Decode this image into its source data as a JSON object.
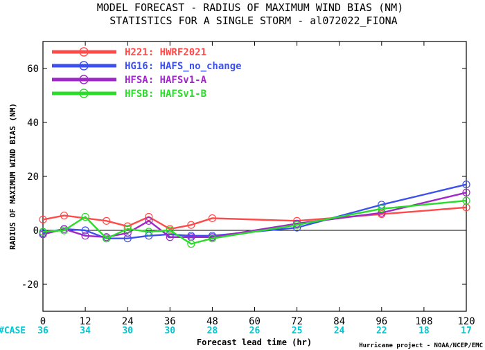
{
  "chart_data": {
    "type": "line",
    "title": "MODEL FORECAST - RADIUS OF MAXIMUM WIND BIAS (NM)",
    "subtitle": "STATISTICS FOR A SINGLE STORM - al072022_FIONA",
    "xlabel": "Forecast lead time (hr)",
    "ylabel": "RADIUS OF MAXIMUM WIND BIAS (NM)",
    "xlim": [
      0,
      120
    ],
    "ylim": [
      -30,
      70
    ],
    "xticks": [
      "0",
      "12",
      "24",
      "36",
      "48",
      "60",
      "72",
      "84",
      "96",
      "108",
      "120"
    ],
    "yticks": [
      "-20",
      "0",
      "20",
      "40",
      "60"
    ],
    "grid": false,
    "legend_position": "top-left",
    "credit": "Hurricane project - NOAA/NCEP/EMC",
    "case_header": "#CASE",
    "cases": [
      {
        "x": 0,
        "n": "36"
      },
      {
        "x": 12,
        "n": "34"
      },
      {
        "x": 24,
        "n": "30"
      },
      {
        "x": 36,
        "n": "30"
      },
      {
        "x": 48,
        "n": "28"
      },
      {
        "x": 60,
        "n": "26"
      },
      {
        "x": 72,
        "n": "25"
      },
      {
        "x": 84,
        "n": "24"
      },
      {
        "x": 96,
        "n": "22"
      },
      {
        "x": 108,
        "n": "18"
      },
      {
        "x": 120,
        "n": "17"
      }
    ],
    "series": [
      {
        "name": "H221: HWRF2021",
        "color": "#ff4a4a",
        "x": [
          0,
          6,
          18,
          24,
          30,
          36,
          42,
          48,
          72,
          96,
          120
        ],
        "y": [
          4,
          5.5,
          3.5,
          1.5,
          5,
          0.5,
          2,
          4.5,
          3.5,
          6,
          8.5
        ]
      },
      {
        "name": "HG16: HAFS_no_change",
        "color": "#3c50f0",
        "x": [
          0,
          6,
          12,
          18,
          24,
          30,
          36,
          42,
          48,
          72,
          96,
          120
        ],
        "y": [
          -1,
          0.5,
          0,
          -3,
          -3,
          -2,
          -1.5,
          -2,
          -2,
          1,
          9.5,
          17
        ]
      },
      {
        "name": "HFSA: HAFSv1-A",
        "color": "#a028c8",
        "x": [
          0,
          6,
          12,
          18,
          24,
          30,
          36,
          42,
          48,
          72,
          96,
          120
        ],
        "y": [
          -1.5,
          0.5,
          -2,
          -2.5,
          -1,
          3.5,
          -2.5,
          -2.5,
          -2.5,
          2.5,
          6.5,
          14
        ]
      },
      {
        "name": "HFSB: HAFSv1-B",
        "color": "#28dc28",
        "x": [
          0,
          6,
          12,
          18,
          24,
          30,
          36,
          42,
          48,
          72,
          96,
          120
        ],
        "y": [
          -0.5,
          0,
          5,
          -3,
          0.5,
          -0.5,
          0,
          -5,
          -3,
          2,
          8,
          11
        ]
      }
    ]
  }
}
